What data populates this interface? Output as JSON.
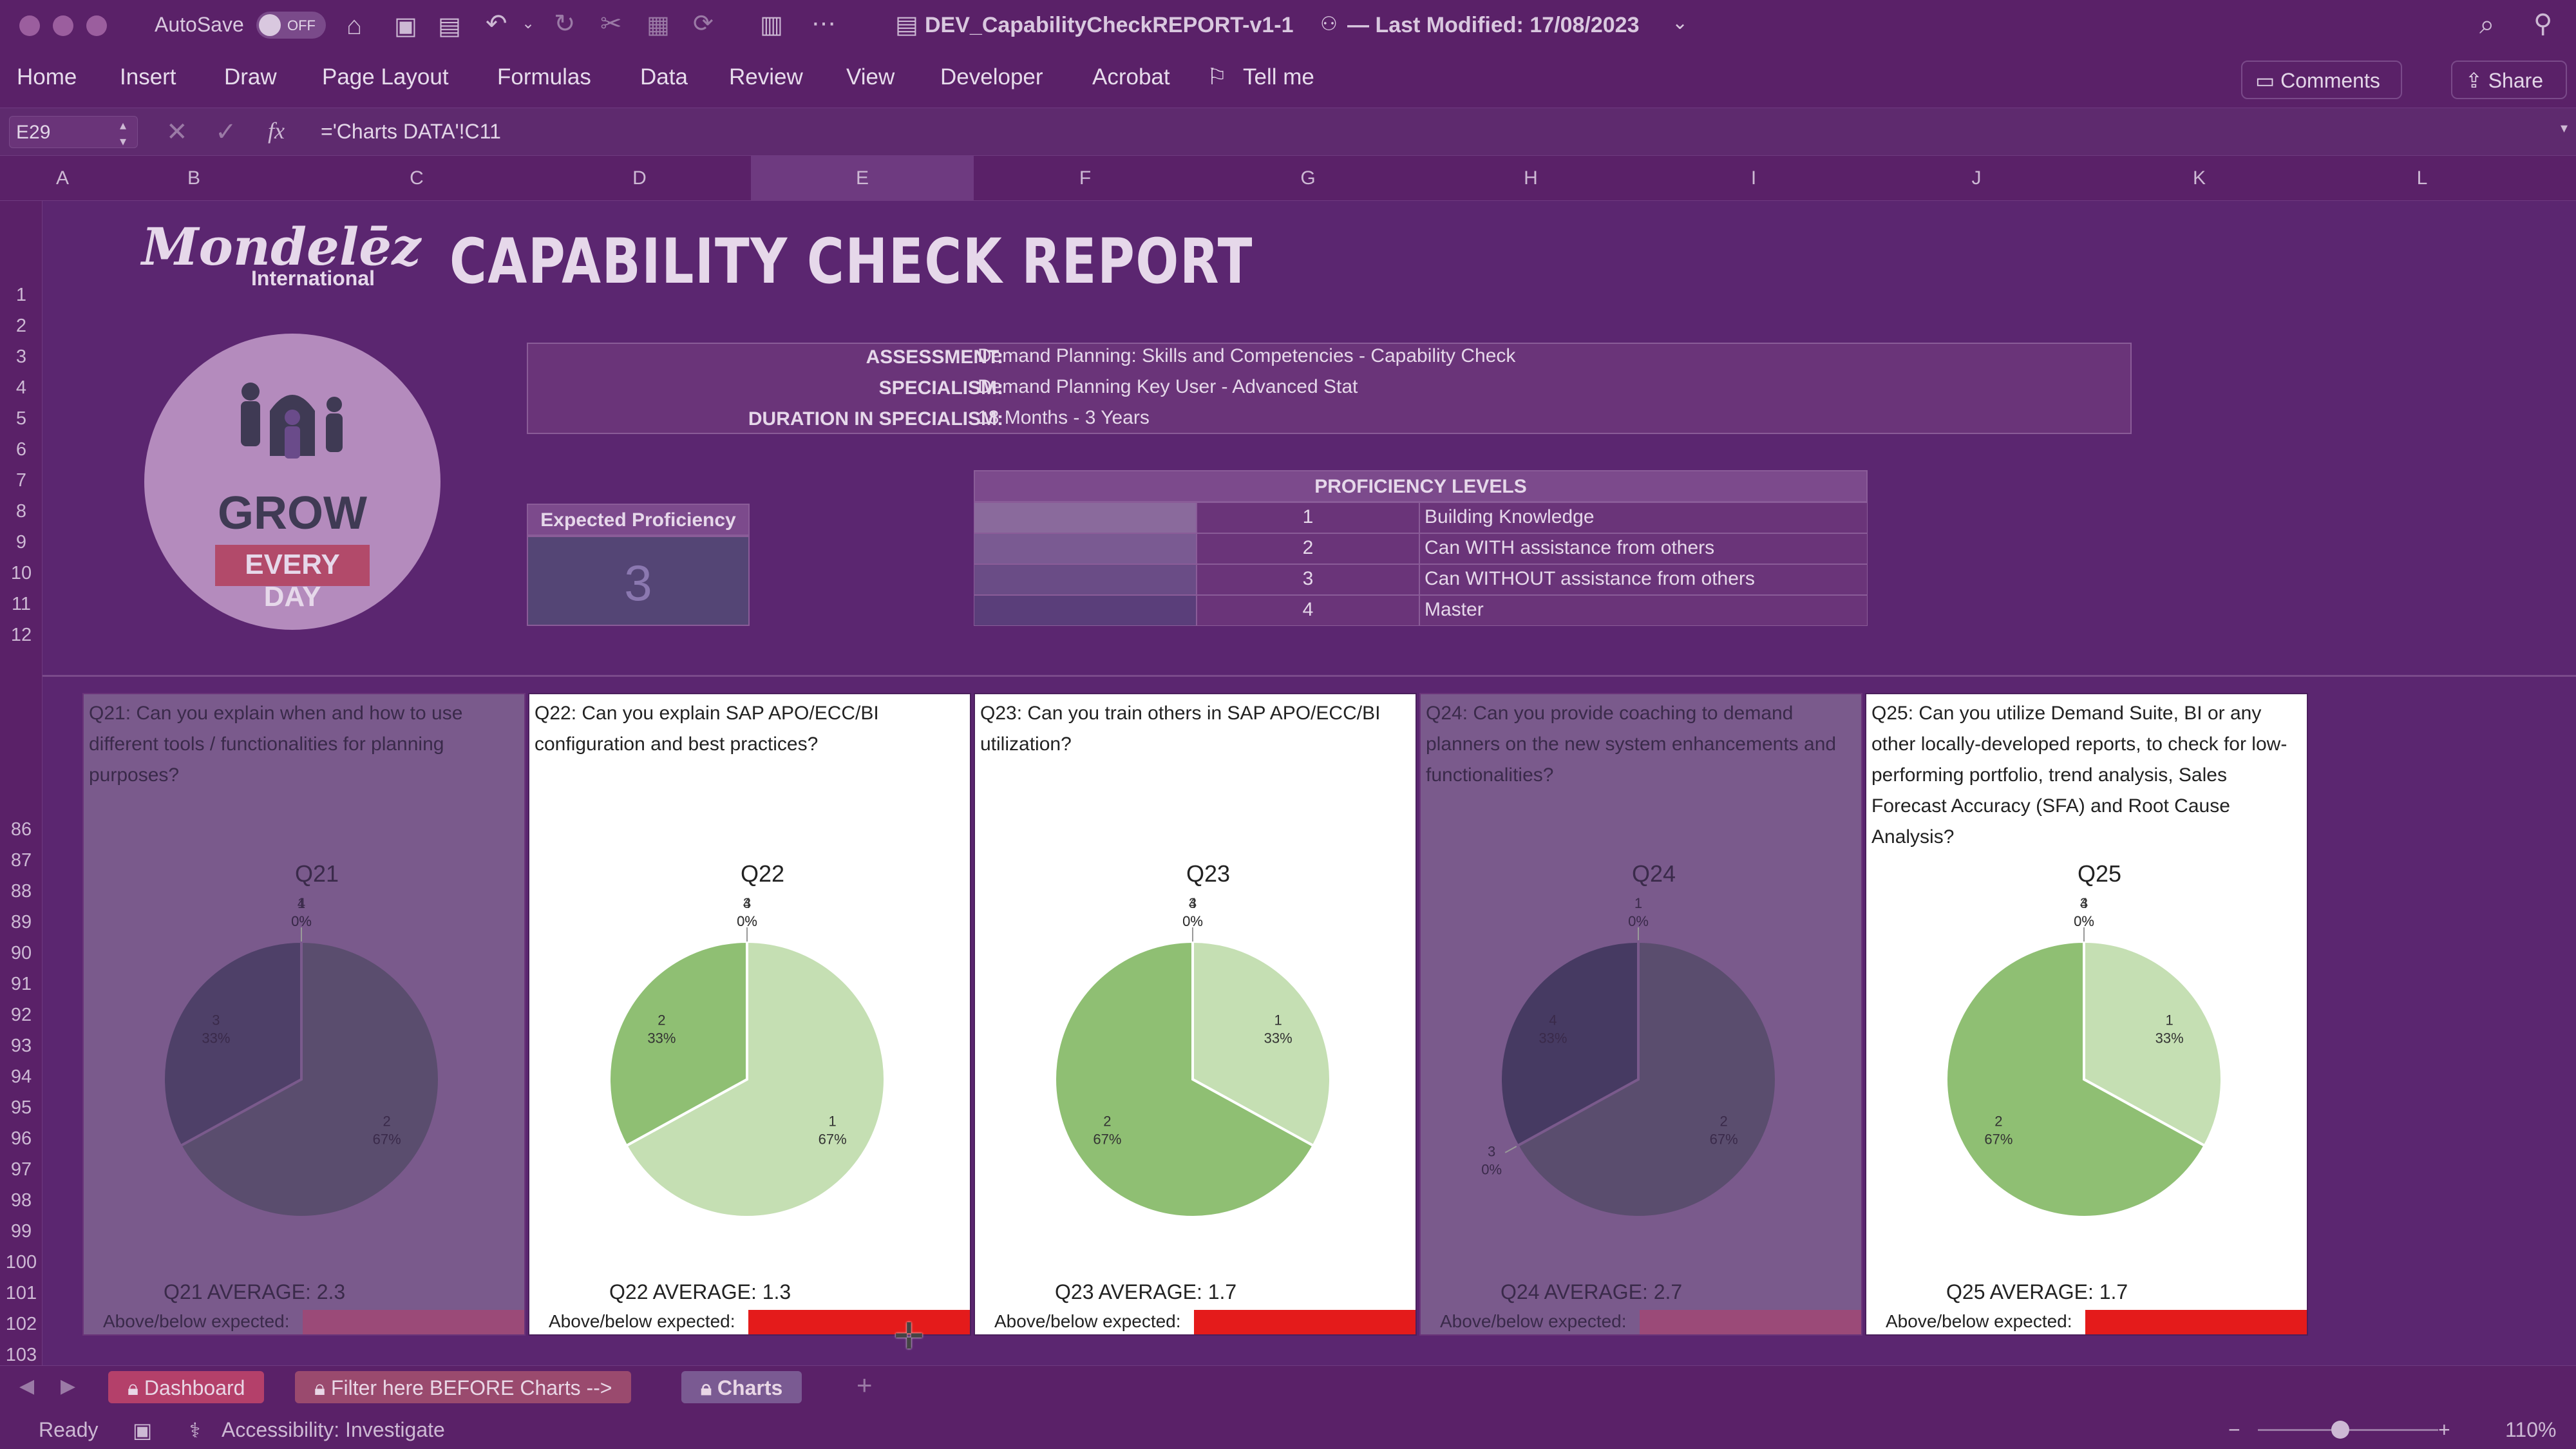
{
  "titlebar": {
    "autosave": "AutoSave",
    "autosave_state": "OFF",
    "file": "DEV_CapabilityCheckREPORT-v1-1",
    "modified": "— Last Modified: 17/08/2023"
  },
  "ribbon": {
    "tabs": [
      "Home",
      "Insert",
      "Draw",
      "Page Layout",
      "Formulas",
      "Data",
      "Review",
      "View",
      "Developer",
      "Acrobat"
    ],
    "tell_me": "Tell me",
    "comments": "Comments",
    "share": "Share"
  },
  "formula": {
    "cell_ref": "E29",
    "fx": "fx",
    "content": "='Charts DATA'!C11"
  },
  "columns": [
    "A",
    "B",
    "C",
    "D",
    "E",
    "F",
    "G",
    "H",
    "I",
    "J",
    "K",
    "L"
  ],
  "rows": [
    "1",
    "2",
    "3",
    "4",
    "5",
    "6",
    "7",
    "8",
    "9",
    "10",
    "11",
    "12",
    "86",
    "87",
    "88",
    "89",
    "90",
    "91",
    "92",
    "93",
    "94",
    "95",
    "96",
    "97",
    "98",
    "99",
    "100",
    "101",
    "102",
    "103"
  ],
  "report": {
    "logo_line1": "Mondelēz",
    "logo_line2": "International",
    "title": "CAPABILITY CHECK REPORT",
    "grow": "GROW",
    "every_day": "EVERY DAY",
    "assessment_label": "ASSESSMENT:",
    "assessment": "Demand Planning: Skills and Competencies - Capability Check",
    "specialism_label": "SPECIALISM:",
    "specialism": "Demand Planning Key User - Advanced Stat",
    "duration_label": "DURATION IN SPECIALISM:",
    "duration": "18 Months - 3 Years",
    "expected_label": "Expected Proficiency",
    "expected_value": "3",
    "prof_header": "PROFICIENCY LEVELS",
    "levels": [
      {
        "num": "1",
        "desc": "Building Knowledge"
      },
      {
        "num": "2",
        "desc": "Can WITH assistance from others"
      },
      {
        "num": "3",
        "desc": "Can WITHOUT assistance from others"
      },
      {
        "num": "4",
        "desc": "Master"
      }
    ]
  },
  "panels": [
    {
      "question": "Q21: Can you explain when and how to use different tools / functionalities for planning purposes?",
      "title": "Q21",
      "average": "Q21 AVERAGE: 2.3",
      "above": "Above/below expected:",
      "bar_color": "#9b4a78",
      "dim": true,
      "slices": [
        {
          "label": "1",
          "pct": "0%",
          "value": 0
        },
        {
          "label": "2",
          "pct": "67%",
          "value": 67
        },
        {
          "label": "3",
          "pct": "33%",
          "value": 33
        },
        {
          "label": "4",
          "pct": "0%",
          "value": 0
        }
      ]
    },
    {
      "question": "Q22: Can you explain SAP APO/ECC/BI configuration and best practices?",
      "title": "Q22",
      "average": "Q22 AVERAGE: 1.3",
      "above": "Above/below expected:",
      "bar_color": "#e41b1b",
      "dim": false,
      "slices": [
        {
          "label": "1",
          "pct": "67%",
          "value": 67
        },
        {
          "label": "2",
          "pct": "33%",
          "value": 33
        },
        {
          "label": "3",
          "pct": "0%",
          "value": 0
        },
        {
          "label": "4",
          "pct": "0%",
          "value": 0
        }
      ]
    },
    {
      "question": "Q23: Can you train others in SAP APO/ECC/BI utilization?",
      "title": "Q23",
      "average": "Q23 AVERAGE: 1.7",
      "above": "Above/below expected:",
      "bar_color": "#e41b1b",
      "dim": false,
      "slices": [
        {
          "label": "1",
          "pct": "33%",
          "value": 33
        },
        {
          "label": "2",
          "pct": "67%",
          "value": 67
        },
        {
          "label": "3",
          "pct": "0%",
          "value": 0
        },
        {
          "label": "4",
          "pct": "0%",
          "value": 0
        }
      ]
    },
    {
      "question": "Q24: Can you provide coaching to demand planners on the new system enhancements and functionalities?",
      "title": "Q24",
      "average": "Q24 AVERAGE: 2.7",
      "above": "Above/below expected:",
      "bar_color": "#9b4a78",
      "dim": true,
      "slices": [
        {
          "label": "1",
          "pct": "0%",
          "value": 0
        },
        {
          "label": "2",
          "pct": "67%",
          "value": 67
        },
        {
          "label": "3",
          "pct": "0%",
          "value": 0
        },
        {
          "label": "4",
          "pct": "33%",
          "value": 33
        }
      ]
    },
    {
      "question": "Q25: Can you utilize Demand Suite, BI or any other locally-developed reports, to check for low-performing portfolio, trend analysis, Sales Forecast Accuracy (SFA) and Root Cause Analysis?",
      "title": "Q25",
      "average": "Q25 AVERAGE: 1.7",
      "above": "Above/below expected:",
      "bar_color": "#e41b1b",
      "dim": false,
      "slices": [
        {
          "label": "1",
          "pct": "33%",
          "value": 33
        },
        {
          "label": "2",
          "pct": "67%",
          "value": 67
        },
        {
          "label": "3",
          "pct": "0%",
          "value": 0
        },
        {
          "label": "4",
          "pct": "0%",
          "value": 0
        }
      ]
    }
  ],
  "sheet_tabs": [
    "Dashboard",
    "Filter here BEFORE Charts -->",
    "Charts"
  ],
  "status": {
    "ready": "Ready",
    "accessibility": "Accessibility: Investigate",
    "zoom": "110%"
  },
  "colors": {
    "purple": "#5b2670",
    "green_dark": "#8fbf73",
    "green_light": "#c5dfb3",
    "red": "#e41b1b"
  }
}
